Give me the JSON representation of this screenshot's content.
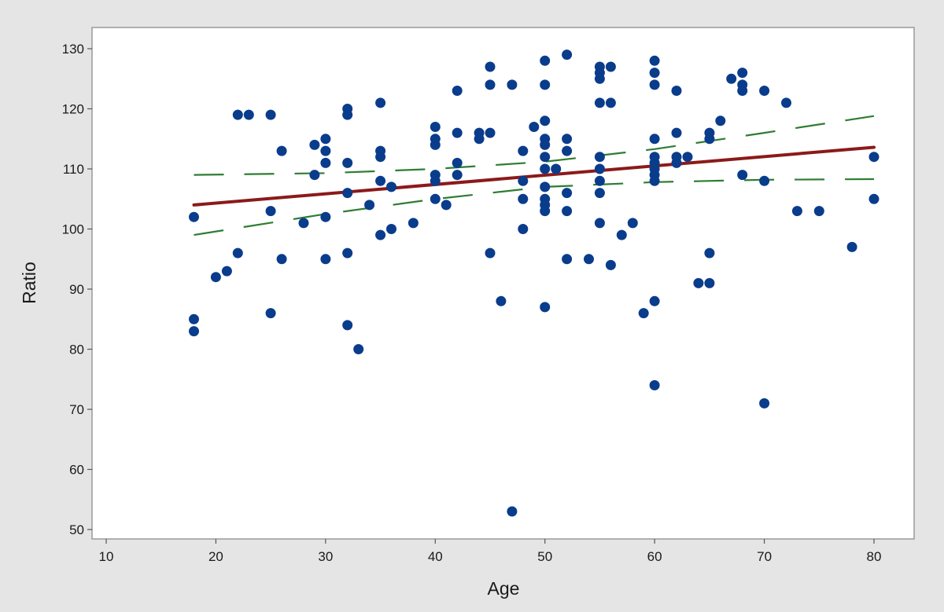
{
  "chart_data": {
    "type": "scatter",
    "title": "",
    "xlabel": "Age",
    "ylabel": "Ratio",
    "xlim": [
      10,
      80
    ],
    "ylim": [
      50,
      130
    ],
    "x_ticks": [
      10,
      20,
      30,
      40,
      50,
      60,
      70,
      80
    ],
    "y_ticks": [
      50,
      60,
      70,
      80,
      90,
      100,
      110,
      120,
      130
    ],
    "grid": false,
    "legend": "none",
    "colors": {
      "points": "#0a3c8c",
      "fit_line": "#8b1a1a",
      "confidence_band": "#2e7d32",
      "plot_background": "#ffffff",
      "figure_background": "#e5e5e5"
    },
    "fit_line": {
      "x": [
        18,
        80
      ],
      "y": [
        104.0,
        113.6
      ]
    },
    "confidence_band": {
      "style": "dashed",
      "upper": {
        "x": [
          18,
          30,
          40,
          50,
          60,
          70,
          80
        ],
        "y": [
          109.0,
          109.3,
          110.0,
          111.2,
          113.3,
          116.0,
          118.8
        ]
      },
      "lower": {
        "x": [
          18,
          30,
          40,
          50,
          60,
          70,
          80
        ],
        "y": [
          99.0,
          102.5,
          105.0,
          107.0,
          107.8,
          108.2,
          108.3
        ]
      }
    },
    "points": [
      {
        "x": 18,
        "y": 102
      },
      {
        "x": 18,
        "y": 85
      },
      {
        "x": 18,
        "y": 83
      },
      {
        "x": 20,
        "y": 92
      },
      {
        "x": 21,
        "y": 93
      },
      {
        "x": 22,
        "y": 96
      },
      {
        "x": 22,
        "y": 119
      },
      {
        "x": 23,
        "y": 119
      },
      {
        "x": 25,
        "y": 119
      },
      {
        "x": 25,
        "y": 103
      },
      {
        "x": 25,
        "y": 86
      },
      {
        "x": 26,
        "y": 113
      },
      {
        "x": 26,
        "y": 95
      },
      {
        "x": 28,
        "y": 101
      },
      {
        "x": 29,
        "y": 114
      },
      {
        "x": 29,
        "y": 109
      },
      {
        "x": 30,
        "y": 115
      },
      {
        "x": 30,
        "y": 113
      },
      {
        "x": 30,
        "y": 111
      },
      {
        "x": 30,
        "y": 102
      },
      {
        "x": 30,
        "y": 95
      },
      {
        "x": 32,
        "y": 120
      },
      {
        "x": 32,
        "y": 119
      },
      {
        "x": 32,
        "y": 111
      },
      {
        "x": 32,
        "y": 106
      },
      {
        "x": 32,
        "y": 96
      },
      {
        "x": 32,
        "y": 84
      },
      {
        "x": 33,
        "y": 80
      },
      {
        "x": 34,
        "y": 104
      },
      {
        "x": 35,
        "y": 121
      },
      {
        "x": 35,
        "y": 113
      },
      {
        "x": 35,
        "y": 112
      },
      {
        "x": 35,
        "y": 108
      },
      {
        "x": 35,
        "y": 99
      },
      {
        "x": 36,
        "y": 107
      },
      {
        "x": 36,
        "y": 100
      },
      {
        "x": 38,
        "y": 101
      },
      {
        "x": 40,
        "y": 117
      },
      {
        "x": 40,
        "y": 115
      },
      {
        "x": 40,
        "y": 114
      },
      {
        "x": 40,
        "y": 109
      },
      {
        "x": 40,
        "y": 108
      },
      {
        "x": 40,
        "y": 105
      },
      {
        "x": 41,
        "y": 104
      },
      {
        "x": 42,
        "y": 123
      },
      {
        "x": 42,
        "y": 116
      },
      {
        "x": 42,
        "y": 111
      },
      {
        "x": 42,
        "y": 109
      },
      {
        "x": 44,
        "y": 116
      },
      {
        "x": 44,
        "y": 115
      },
      {
        "x": 45,
        "y": 127
      },
      {
        "x": 45,
        "y": 124
      },
      {
        "x": 45,
        "y": 116
      },
      {
        "x": 45,
        "y": 96
      },
      {
        "x": 46,
        "y": 88
      },
      {
        "x": 47,
        "y": 124
      },
      {
        "x": 47,
        "y": 53
      },
      {
        "x": 48,
        "y": 113
      },
      {
        "x": 48,
        "y": 108
      },
      {
        "x": 48,
        "y": 105
      },
      {
        "x": 48,
        "y": 100
      },
      {
        "x": 49,
        "y": 117
      },
      {
        "x": 50,
        "y": 128
      },
      {
        "x": 50,
        "y": 124
      },
      {
        "x": 50,
        "y": 118
      },
      {
        "x": 50,
        "y": 115
      },
      {
        "x": 50,
        "y": 114
      },
      {
        "x": 50,
        "y": 112
      },
      {
        "x": 50,
        "y": 110
      },
      {
        "x": 50,
        "y": 107
      },
      {
        "x": 50,
        "y": 105
      },
      {
        "x": 50,
        "y": 104
      },
      {
        "x": 50,
        "y": 103
      },
      {
        "x": 50,
        "y": 87
      },
      {
        "x": 51,
        "y": 110
      },
      {
        "x": 52,
        "y": 129
      },
      {
        "x": 52,
        "y": 115
      },
      {
        "x": 52,
        "y": 113
      },
      {
        "x": 52,
        "y": 106
      },
      {
        "x": 52,
        "y": 103
      },
      {
        "x": 52,
        "y": 95
      },
      {
        "x": 54,
        "y": 95
      },
      {
        "x": 55,
        "y": 127
      },
      {
        "x": 55,
        "y": 126
      },
      {
        "x": 55,
        "y": 125
      },
      {
        "x": 55,
        "y": 121
      },
      {
        "x": 55,
        "y": 112
      },
      {
        "x": 55,
        "y": 110
      },
      {
        "x": 55,
        "y": 108
      },
      {
        "x": 55,
        "y": 106
      },
      {
        "x": 55,
        "y": 101
      },
      {
        "x": 56,
        "y": 127
      },
      {
        "x": 56,
        "y": 121
      },
      {
        "x": 56,
        "y": 94
      },
      {
        "x": 57,
        "y": 99
      },
      {
        "x": 58,
        "y": 101
      },
      {
        "x": 59,
        "y": 86
      },
      {
        "x": 60,
        "y": 128
      },
      {
        "x": 60,
        "y": 126
      },
      {
        "x": 60,
        "y": 124
      },
      {
        "x": 60,
        "y": 115
      },
      {
        "x": 60,
        "y": 112
      },
      {
        "x": 60,
        "y": 111
      },
      {
        "x": 60,
        "y": 110
      },
      {
        "x": 60,
        "y": 109
      },
      {
        "x": 60,
        "y": 108
      },
      {
        "x": 60,
        "y": 88
      },
      {
        "x": 60,
        "y": 74
      },
      {
        "x": 62,
        "y": 123
      },
      {
        "x": 62,
        "y": 116
      },
      {
        "x": 62,
        "y": 112
      },
      {
        "x": 62,
        "y": 111
      },
      {
        "x": 63,
        "y": 112
      },
      {
        "x": 64,
        "y": 91
      },
      {
        "x": 65,
        "y": 116
      },
      {
        "x": 65,
        "y": 115
      },
      {
        "x": 65,
        "y": 96
      },
      {
        "x": 65,
        "y": 91
      },
      {
        "x": 66,
        "y": 118
      },
      {
        "x": 67,
        "y": 125
      },
      {
        "x": 68,
        "y": 126
      },
      {
        "x": 68,
        "y": 124
      },
      {
        "x": 68,
        "y": 123
      },
      {
        "x": 68,
        "y": 109
      },
      {
        "x": 70,
        "y": 123
      },
      {
        "x": 70,
        "y": 108
      },
      {
        "x": 70,
        "y": 71
      },
      {
        "x": 72,
        "y": 121
      },
      {
        "x": 73,
        "y": 103
      },
      {
        "x": 75,
        "y": 103
      },
      {
        "x": 78,
        "y": 97
      },
      {
        "x": 80,
        "y": 112
      },
      {
        "x": 80,
        "y": 105
      }
    ]
  }
}
